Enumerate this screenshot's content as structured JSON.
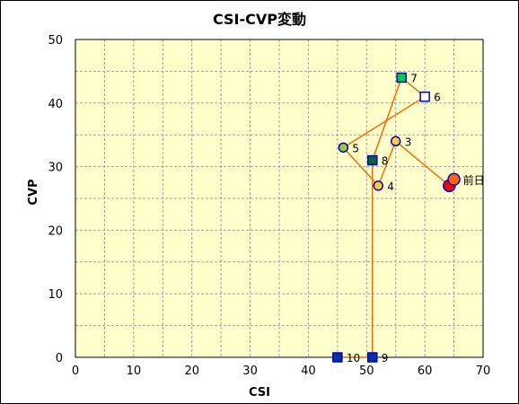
{
  "chart_data": {
    "type": "scatter",
    "title": "CSI-CVP変動",
    "xlabel": "CSI",
    "ylabel": "CVP",
    "xlim": [
      0,
      70
    ],
    "ylim": [
      0,
      50
    ],
    "xticks": [
      "0",
      "10",
      "20",
      "30",
      "40",
      "50",
      "60",
      "70"
    ],
    "yticks": [
      "0",
      "10",
      "20",
      "30",
      "40",
      "50"
    ],
    "grid": true,
    "colors": {
      "plot_background": "#ffffcc",
      "grid": "#a0a0a0",
      "line": "#ff6600",
      "marker_edge": "#0000cc"
    },
    "series": [
      {
        "points": [
          {
            "label": "前日",
            "x": 65,
            "y": 28,
            "marker": "circle",
            "fill": "#ff6600"
          },
          {
            "label": "",
            "x": 64.2,
            "y": 27,
            "marker": "circle",
            "fill": "#ff0000"
          },
          {
            "label": "3",
            "x": 55,
            "y": 34,
            "marker": "circle",
            "fill": "#ffcc33"
          },
          {
            "label": "4",
            "x": 52,
            "y": 27,
            "marker": "circle",
            "fill": "#ffcc33"
          },
          {
            "label": "5",
            "x": 46,
            "y": 33,
            "marker": "circle",
            "fill": "#99cc33"
          },
          {
            "label": "6",
            "x": 60,
            "y": 41,
            "marker": "square",
            "fill": "#ffffff"
          },
          {
            "label": "7",
            "x": 56,
            "y": 44,
            "marker": "square",
            "fill": "#00cc44"
          },
          {
            "label": "8",
            "x": 51,
            "y": 31,
            "marker": "square",
            "fill": "#006633"
          },
          {
            "label": "9",
            "x": 51,
            "y": 0,
            "marker": "square",
            "fill": "#003399"
          },
          {
            "label": "10",
            "x": 45,
            "y": 0,
            "marker": "square",
            "fill": "#003399"
          }
        ]
      }
    ]
  }
}
